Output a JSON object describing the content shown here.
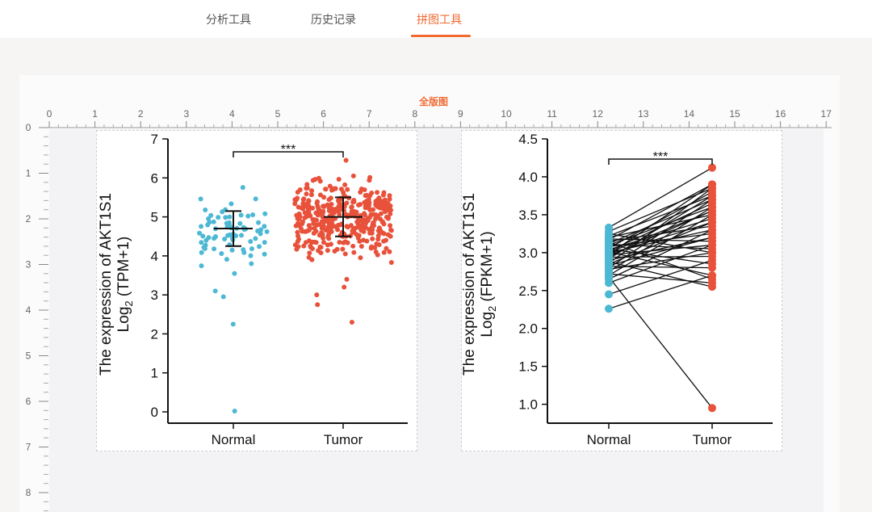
{
  "nav": {
    "tabs": [
      {
        "label": "分析工具"
      },
      {
        "label": "历史记录"
      },
      {
        "label": "拼图工具"
      }
    ],
    "active_tab": "拼图工具"
  },
  "canvas": {
    "title": "全版图",
    "ruler_x_labels": [
      "0",
      "1",
      "2",
      "3",
      "4",
      "5",
      "6",
      "7",
      "8",
      "9",
      "10",
      "11",
      "12",
      "13",
      "14",
      "15",
      "16",
      "17"
    ],
    "ruler_y_labels": [
      "0",
      "1",
      "2",
      "3",
      "4",
      "5",
      "6",
      "7",
      "8"
    ]
  },
  "colors": {
    "accent": "#f06a32",
    "normal": "#4db8d4",
    "tumor": "#e8513a"
  },
  "chart_data": [
    {
      "type": "scatter",
      "subtype": "jitter-with-mean-sd",
      "ylabel_line1": "The expression of AKT1S1",
      "ylabel_line2_main": "Log",
      "ylabel_line2_sub": "2",
      "ylabel_line2_rest": " (TPM+1)",
      "categories": [
        "Normal",
        "Tumor"
      ],
      "ylim": [
        0,
        7
      ],
      "yticks": [
        "0",
        "1",
        "2",
        "3",
        "4",
        "5",
        "6",
        "7"
      ],
      "significance": "***",
      "series": [
        {
          "name": "Normal",
          "mean": 4.7,
          "sd_low": 4.25,
          "sd_high": 5.15,
          "count": 72,
          "outliers": [
            3.1,
            2.95,
            2.25,
            0.02,
            3.55,
            3.8
          ]
        },
        {
          "name": "Tumor",
          "mean": 5.0,
          "sd_low": 4.5,
          "sd_high": 5.5,
          "count": 380,
          "outliers": [
            6.45,
            2.3,
            2.75,
            3.0,
            3.2,
            3.4,
            6.05
          ]
        }
      ]
    },
    {
      "type": "line",
      "subtype": "paired-dot",
      "ylabel_line1": "The expression of AKT1S1",
      "ylabel_line2_main": "Log",
      "ylabel_line2_sub": "2",
      "ylabel_line2_rest": " (FPKM+1)",
      "categories": [
        "Normal",
        "Tumor"
      ],
      "ylim": [
        0.9,
        4.5
      ],
      "yticks": [
        "1.0",
        "1.5",
        "2.0",
        "2.5",
        "3.0",
        "3.5",
        "4.0",
        "4.5"
      ],
      "significance": "***",
      "pairs": [
        [
          2.26,
          2.7
        ],
        [
          2.45,
          2.9
        ],
        [
          2.6,
          3.1
        ],
        [
          2.65,
          3.3
        ],
        [
          2.7,
          3.5
        ],
        [
          2.72,
          2.6
        ],
        [
          2.75,
          3.6
        ],
        [
          2.78,
          3.0
        ],
        [
          2.8,
          3.7
        ],
        [
          2.82,
          2.8
        ],
        [
          2.85,
          3.4
        ],
        [
          2.86,
          3.85
        ],
        [
          2.88,
          2.55
        ],
        [
          2.9,
          3.2
        ],
        [
          2.92,
          3.75
        ],
        [
          2.94,
          2.95
        ],
        [
          2.95,
          3.55
        ],
        [
          2.97,
          3.1
        ],
        [
          2.98,
          3.9
        ],
        [
          3.0,
          3.3
        ],
        [
          3.01,
          2.7
        ],
        [
          3.02,
          3.65
        ],
        [
          3.04,
          3.45
        ],
        [
          3.05,
          2.85
        ],
        [
          3.06,
          3.8
        ],
        [
          3.08,
          3.25
        ],
        [
          3.1,
          3.6
        ],
        [
          3.11,
          3.05
        ],
        [
          3.12,
          3.7
        ],
        [
          3.14,
          2.65
        ],
        [
          3.15,
          3.35
        ],
        [
          3.17,
          3.9
        ],
        [
          3.18,
          3.15
        ],
        [
          3.2,
          3.5
        ],
        [
          3.22,
          3.75
        ],
        [
          3.25,
          3.0
        ],
        [
          3.28,
          3.85
        ],
        [
          3.33,
          4.12
        ],
        [
          2.68,
          0.95
        ],
        [
          2.98,
          3.4
        ],
        [
          3.0,
          3.55
        ],
        [
          2.83,
          3.2
        ]
      ]
    }
  ]
}
